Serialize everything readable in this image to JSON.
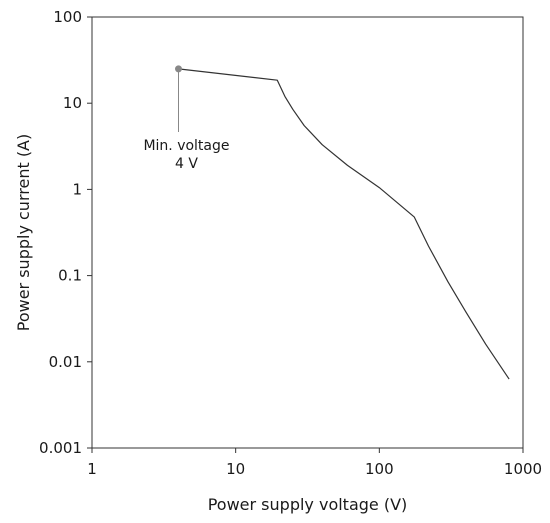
{
  "chart_data": {
    "type": "line",
    "x_scale": "log",
    "y_scale": "log",
    "xlim": [
      1,
      1000
    ],
    "ylim": [
      0.001,
      100
    ],
    "xlabel": "Power supply voltage (V)",
    "ylabel": "Power supply current (A)",
    "x_ticks": [
      "1",
      "10",
      "100",
      "1000"
    ],
    "y_ticks": [
      "0.001",
      "0.01",
      "0.1",
      "1",
      "10",
      "100"
    ],
    "grid": false,
    "legend": "none",
    "series": [
      {
        "color": "#333333",
        "x": [
          4,
          19.5,
          22,
          25,
          30,
          40,
          60,
          100,
          175,
          220,
          300,
          400,
          550,
          800
        ],
        "y": [
          25,
          18.5,
          12,
          8.5,
          5.5,
          3.3,
          1.9,
          1.05,
          0.48,
          0.22,
          0.085,
          0.038,
          0.016,
          0.0063
        ]
      }
    ],
    "annotations": [
      {
        "text_line1": "Min. voltage",
        "text_line2": "4 V",
        "x": 4,
        "y": 25,
        "marker_color": "#888888"
      }
    ]
  }
}
